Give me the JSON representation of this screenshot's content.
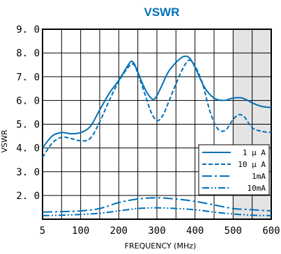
{
  "chart_data": {
    "type": "line",
    "title": "VSWR",
    "xlabel": "FREQUENCY (MHz)",
    "ylabel": "VSWR",
    "xlim": [
      0,
      600
    ],
    "ylim": [
      1,
      9
    ],
    "x_ticks": [
      {
        "value": 0,
        "label": "5"
      },
      {
        "value": 100,
        "label": "100"
      },
      {
        "value": 200,
        "label": "200"
      },
      {
        "value": 300,
        "label": "300"
      },
      {
        "value": 400,
        "label": "400"
      },
      {
        "value": 500,
        "label": "500"
      },
      {
        "value": 600,
        "label": "600"
      }
    ],
    "y_ticks": [
      {
        "value": 2,
        "label": "2. 0"
      },
      {
        "value": 3,
        "label": "3. 0"
      },
      {
        "value": 4,
        "label": "4. 0"
      },
      {
        "value": 5,
        "label": "5. 0"
      },
      {
        "value": 6,
        "label": "6. 0"
      },
      {
        "value": 7,
        "label": "7. 0"
      },
      {
        "value": 8,
        "label": "8. 0"
      },
      {
        "value": 9,
        "label": "9. 0"
      }
    ],
    "grid": true,
    "grid_step_x": 50,
    "grid_step_y": 1,
    "shaded_region": [
      500,
      600
    ],
    "legend_position": "lower-right",
    "line_color": "#0070b8",
    "shade_color": "#e4e4e4",
    "series": [
      {
        "name": "1 μ A",
        "dash": "solid",
        "x": [
          0,
          25,
          50,
          75,
          100,
          125,
          150,
          175,
          200,
          225,
          235,
          245,
          260,
          275,
          290,
          300,
          315,
          330,
          350,
          370,
          385,
          400,
          425,
          450,
          475,
          500,
          525,
          550,
          575,
          600
        ],
        "y": [
          4.0,
          4.5,
          4.65,
          4.6,
          4.65,
          4.9,
          5.6,
          6.3,
          6.85,
          7.5,
          7.65,
          7.4,
          6.8,
          6.3,
          6.05,
          6.2,
          6.7,
          7.2,
          7.6,
          7.85,
          7.8,
          7.4,
          6.55,
          6.1,
          6.0,
          6.1,
          6.1,
          5.9,
          5.75,
          5.7
        ]
      },
      {
        "name": "10 μ A",
        "dash": "dashed",
        "x": [
          0,
          25,
          50,
          75,
          100,
          125,
          150,
          175,
          200,
          225,
          240,
          255,
          270,
          285,
          300,
          315,
          330,
          350,
          370,
          385,
          400,
          420,
          440,
          460,
          480,
          500,
          515,
          530,
          550,
          575,
          600
        ],
        "y": [
          3.6,
          4.2,
          4.45,
          4.4,
          4.3,
          4.4,
          5.1,
          6.0,
          6.8,
          7.4,
          7.5,
          6.9,
          6.2,
          5.5,
          5.15,
          5.35,
          5.9,
          6.7,
          7.4,
          7.7,
          7.45,
          6.7,
          5.5,
          4.8,
          4.75,
          5.2,
          5.4,
          5.3,
          4.85,
          4.7,
          4.65
        ]
      },
      {
        "name": "1mA",
        "dash": "dashdot",
        "x": [
          0,
          50,
          100,
          150,
          200,
          250,
          300,
          350,
          400,
          450,
          500,
          550,
          600
        ],
        "y": [
          1.3,
          1.32,
          1.35,
          1.45,
          1.7,
          1.85,
          1.9,
          1.85,
          1.75,
          1.6,
          1.45,
          1.4,
          1.35
        ]
      },
      {
        "name": "10mA",
        "dash": "dashdotdot",
        "x": [
          0,
          50,
          100,
          150,
          200,
          250,
          300,
          350,
          400,
          450,
          500,
          550,
          600
        ],
        "y": [
          1.15,
          1.17,
          1.2,
          1.25,
          1.35,
          1.45,
          1.48,
          1.45,
          1.4,
          1.3,
          1.22,
          1.17,
          1.15
        ]
      }
    ]
  }
}
